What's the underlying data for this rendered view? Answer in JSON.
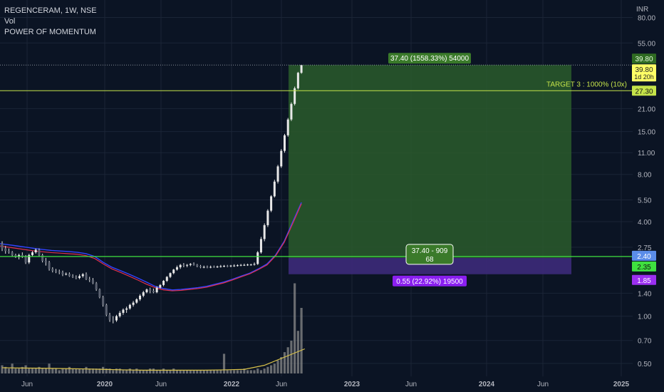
{
  "legend": {
    "symbol": "REGENCERAM, 1W, NSE",
    "line2": "Vol",
    "line3": "POWER OF MOMENTUM"
  },
  "currency": "INR",
  "colors": {
    "background": "#0b1424",
    "candle": "#e8e8e8",
    "grid": "#1b2536",
    "profit_zone": "#2a5a2c",
    "loss_zone": "#3c2a7a",
    "target_line": "#c5e34a",
    "entry_line": "#3fe03f",
    "ma_blue": "#3344ff",
    "ma_red": "#e0304d",
    "volume": "#8a8a8a",
    "volume_ma": "#d9c24a"
  },
  "chart_data": {
    "type": "candlestick",
    "y_scale": "log",
    "ylim": [
      0.45,
      95
    ],
    "y_ticks": [
      "80.00",
      "55.00",
      "21.00",
      "15.00",
      "11.00",
      "8.00",
      "5.50",
      "4.00",
      "2.75",
      "1.40",
      "1.00",
      "0.70",
      "0.50"
    ],
    "x_ticks": [
      "Jun",
      "2020",
      "Jun",
      "2022",
      "Jun",
      "2023",
      "Jun",
      "2024",
      "Jun",
      "2025"
    ],
    "price_labels": [
      {
        "value": "39.80",
        "role": "last-high"
      },
      {
        "value": "39.80",
        "sub": "1d 20h",
        "role": "current-price"
      },
      {
        "value": "27.30",
        "role": "target"
      },
      {
        "value": "2.40",
        "role": "entry-top"
      },
      {
        "value": "2.35",
        "role": "entry"
      },
      {
        "value": "1.85",
        "role": "stop"
      }
    ],
    "position": {
      "entry": 2.35,
      "target": 39.8,
      "stop": 1.85,
      "profit_label": "37.40 (1558.33%) 54000",
      "center_label_line1": "37.40 - 909",
      "center_label_line2": "68",
      "loss_label": "0.55 (22.92%) 19500"
    },
    "target_label": "TARGET 3 : 1000%  (10x)",
    "candles": [
      [
        2.9,
        3.0,
        2.6,
        2.7
      ],
      [
        2.7,
        2.8,
        2.5,
        2.6
      ],
      [
        2.6,
        2.7,
        2.5,
        2.55
      ],
      [
        2.55,
        2.6,
        2.4,
        2.45
      ],
      [
        2.45,
        2.5,
        2.35,
        2.4
      ],
      [
        2.4,
        2.5,
        2.3,
        2.45
      ],
      [
        2.45,
        2.55,
        2.35,
        2.4
      ],
      [
        2.4,
        2.45,
        2.15,
        2.2
      ],
      [
        2.2,
        2.5,
        2.15,
        2.45
      ],
      [
        2.45,
        2.6,
        2.4,
        2.55
      ],
      [
        2.55,
        2.7,
        2.5,
        2.65
      ],
      [
        2.65,
        2.7,
        2.4,
        2.45
      ],
      [
        2.45,
        2.5,
        2.2,
        2.25
      ],
      [
        2.25,
        2.35,
        2.1,
        2.2
      ],
      [
        2.2,
        2.25,
        1.95,
        2.0
      ],
      [
        2.0,
        2.05,
        1.9,
        1.95
      ],
      [
        1.95,
        2.0,
        1.88,
        1.92
      ],
      [
        1.92,
        1.98,
        1.85,
        1.9
      ],
      [
        1.9,
        1.95,
        1.8,
        1.85
      ],
      [
        1.85,
        1.9,
        1.82,
        1.86
      ],
      [
        1.86,
        1.9,
        1.78,
        1.8
      ],
      [
        1.8,
        1.85,
        1.75,
        1.78
      ],
      [
        1.78,
        1.82,
        1.72,
        1.75
      ],
      [
        1.75,
        1.85,
        1.72,
        1.8
      ],
      [
        1.8,
        1.88,
        1.76,
        1.85
      ],
      [
        1.85,
        1.9,
        1.7,
        1.72
      ],
      [
        1.72,
        1.78,
        1.65,
        1.7
      ],
      [
        1.7,
        1.75,
        1.6,
        1.62
      ],
      [
        1.62,
        1.65,
        1.45,
        1.48
      ],
      [
        1.48,
        1.5,
        1.3,
        1.32
      ],
      [
        1.32,
        1.35,
        1.15,
        1.18
      ],
      [
        1.18,
        1.2,
        1.0,
        1.02
      ],
      [
        1.02,
        1.05,
        0.92,
        0.95
      ],
      [
        0.95,
        1.0,
        0.9,
        0.94
      ],
      [
        0.94,
        1.02,
        0.92,
        1.0
      ],
      [
        1.0,
        1.08,
        0.98,
        1.05
      ],
      [
        1.05,
        1.12,
        1.02,
        1.1
      ],
      [
        1.1,
        1.15,
        1.05,
        1.12
      ],
      [
        1.12,
        1.2,
        1.1,
        1.18
      ],
      [
        1.18,
        1.25,
        1.15,
        1.22
      ],
      [
        1.22,
        1.3,
        1.2,
        1.28
      ],
      [
        1.28,
        1.38,
        1.25,
        1.35
      ],
      [
        1.35,
        1.45,
        1.32,
        1.42
      ],
      [
        1.42,
        1.5,
        1.4,
        1.48
      ],
      [
        1.48,
        1.52,
        1.4,
        1.45
      ],
      [
        1.45,
        1.5,
        1.4,
        1.42
      ],
      [
        1.42,
        1.55,
        1.4,
        1.52
      ],
      [
        1.52,
        1.6,
        1.5,
        1.58
      ],
      [
        1.58,
        1.7,
        1.55,
        1.68
      ],
      [
        1.68,
        1.8,
        1.65,
        1.78
      ],
      [
        1.78,
        1.9,
        1.75,
        1.88
      ],
      [
        1.88,
        2.0,
        1.85,
        1.98
      ],
      [
        1.98,
        2.1,
        1.95,
        2.05
      ],
      [
        2.05,
        2.15,
        2.0,
        2.12
      ],
      [
        2.12,
        2.18,
        2.05,
        2.1
      ],
      [
        2.1,
        2.15,
        2.05,
        2.12
      ],
      [
        2.12,
        2.18,
        2.08,
        2.15
      ],
      [
        2.15,
        2.2,
        2.1,
        2.12
      ],
      [
        2.12,
        2.15,
        2.05,
        2.08
      ],
      [
        2.08,
        2.12,
        2.02,
        2.05
      ],
      [
        2.05,
        2.1,
        2.02,
        2.06
      ],
      [
        2.06,
        2.1,
        2.02,
        2.05
      ],
      [
        2.05,
        2.1,
        2.02,
        2.06
      ],
      [
        2.06,
        2.1,
        2.03,
        2.05
      ],
      [
        2.05,
        2.1,
        2.03,
        2.07
      ],
      [
        2.07,
        2.12,
        2.04,
        2.08
      ],
      [
        2.08,
        2.12,
        2.05,
        2.09
      ],
      [
        2.09,
        2.12,
        2.05,
        2.08
      ],
      [
        2.08,
        2.12,
        2.05,
        2.1
      ],
      [
        2.1,
        2.14,
        2.06,
        2.1
      ],
      [
        2.1,
        2.14,
        2.07,
        2.11
      ],
      [
        2.11,
        2.15,
        2.08,
        2.12
      ],
      [
        2.12,
        2.16,
        2.09,
        2.12
      ],
      [
        2.12,
        2.16,
        2.09,
        2.13
      ],
      [
        2.13,
        2.16,
        2.1,
        2.13
      ],
      [
        2.13,
        2.2,
        2.1,
        2.15
      ],
      [
        2.15,
        2.6,
        2.12,
        2.55
      ],
      [
        2.55,
        3.2,
        2.5,
        3.1
      ],
      [
        3.1,
        3.9,
        3.0,
        3.8
      ],
      [
        3.8,
        4.8,
        3.7,
        4.7
      ],
      [
        4.7,
        5.9,
        4.6,
        5.8
      ],
      [
        5.8,
        7.4,
        5.7,
        7.2
      ],
      [
        7.2,
        9.2,
        7.0,
        9.0
      ],
      [
        9.0,
        11.6,
        8.8,
        11.3
      ],
      [
        11.3,
        14.5,
        11.0,
        14.2
      ],
      [
        14.2,
        18.3,
        13.9,
        17.9
      ],
      [
        17.9,
        23.0,
        17.5,
        22.5
      ],
      [
        22.5,
        29.0,
        22.0,
        28.3
      ],
      [
        28.3,
        36.0,
        27.8,
        35.5
      ],
      [
        35.5,
        39.8,
        35.0,
        39.8
      ]
    ],
    "volumes": [
      0.5,
      0.4,
      0.3,
      0.6,
      0.3,
      0.3,
      0.4,
      0.5,
      0.3,
      0.3,
      0.3,
      0.4,
      0.3,
      0.3,
      0.6,
      0.3,
      0.3,
      0.2,
      0.3,
      0.3,
      0.4,
      0.3,
      0.3,
      0.3,
      0.3,
      0.4,
      0.3,
      0.3,
      0.3,
      0.3,
      0.4,
      0.3,
      0.3,
      0.2,
      0.3,
      0.3,
      0.2,
      0.2,
      0.3,
      0.2,
      0.3,
      0.2,
      0.2,
      0.2,
      0.3,
      0.3,
      0.2,
      0.2,
      0.3,
      0.2,
      0.2,
      0.3,
      0.2,
      0.2,
      0.2,
      0.2,
      0.2,
      0.2,
      0.2,
      0.2,
      0.2,
      0.2,
      0.2,
      0.2,
      0.2,
      0.2,
      1.2,
      0.2,
      0.2,
      0.2,
      0.2,
      0.2,
      0.3,
      0.2,
      0.2,
      0.2,
      0.3,
      0.2,
      0.3,
      0.4,
      0.5,
      0.6,
      0.8,
      1.0,
      1.3,
      1.6,
      2.0,
      5.5,
      2.6,
      4.0
    ],
    "ma_blue": [
      2.9,
      2.85,
      2.8,
      2.75,
      2.7,
      2.66,
      2.62,
      2.6,
      2.58,
      2.55,
      2.5,
      2.4,
      2.2,
      2.05,
      1.95,
      1.85,
      1.75,
      1.65,
      1.55,
      1.5,
      1.47,
      1.48,
      1.5,
      1.52,
      1.55,
      1.6,
      1.65,
      1.72,
      1.8,
      1.88,
      2.0,
      2.15,
      2.45,
      3.0,
      4.0,
      5.3
    ],
    "ma_red": [
      2.8,
      2.75,
      2.7,
      2.65,
      2.6,
      2.57,
      2.54,
      2.52,
      2.5,
      2.48,
      2.43,
      2.33,
      2.15,
      2.0,
      1.9,
      1.8,
      1.7,
      1.6,
      1.52,
      1.47,
      1.45,
      1.46,
      1.48,
      1.5,
      1.53,
      1.58,
      1.63,
      1.7,
      1.78,
      1.86,
      1.98,
      2.12,
      2.42,
      2.95,
      3.9,
      5.2
    ],
    "volume_ma": [
      0.35,
      0.33,
      0.32,
      0.3,
      0.28,
      0.25,
      0.22,
      0.2,
      0.2,
      0.2,
      0.2,
      0.22,
      0.25,
      0.5,
      1.0,
      1.5
    ]
  }
}
